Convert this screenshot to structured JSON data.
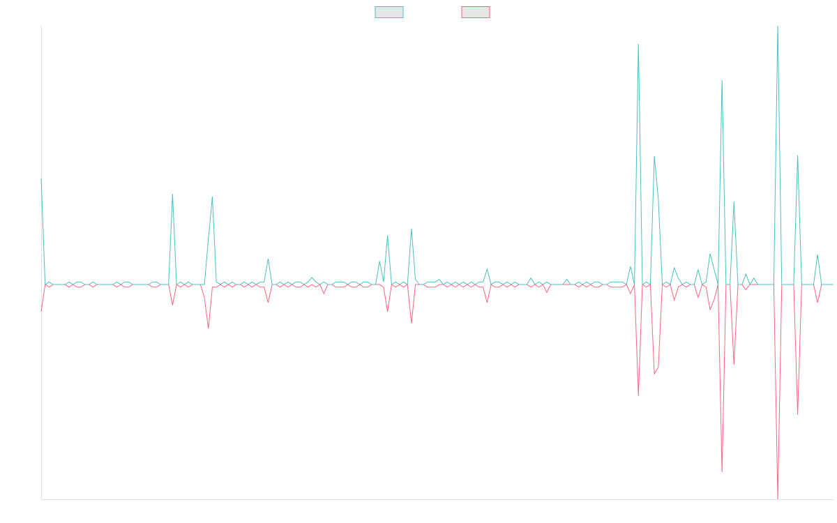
{
  "chart_data": {
    "type": "line",
    "legend": "top",
    "ylim": [
      -83,
      100
    ],
    "series": [
      {
        "color": "#4bc0c0",
        "values": [
          41,
          0,
          1,
          0,
          0,
          0,
          0,
          1,
          0,
          1,
          1,
          0,
          0,
          1,
          0,
          0,
          0,
          0,
          0,
          1,
          0,
          1,
          1,
          0,
          0,
          0,
          0,
          0,
          1,
          1,
          0,
          0,
          0,
          35,
          0,
          1,
          0,
          1,
          0,
          0,
          0,
          0,
          17.5,
          34,
          1,
          0,
          1,
          0,
          1,
          0,
          0,
          1,
          0,
          1,
          0,
          1,
          1,
          10,
          0,
          0,
          1,
          0,
          1,
          0,
          1,
          1,
          0,
          1,
          2.7,
          1,
          0,
          1,
          0,
          0,
          1,
          1,
          1,
          0,
          1,
          1,
          0,
          1,
          1,
          0,
          0,
          9,
          1,
          19,
          0,
          1,
          0,
          1,
          0,
          21.5,
          2,
          0,
          0,
          1,
          1,
          1,
          2,
          0,
          1,
          0,
          1,
          0,
          1,
          0,
          1,
          0,
          1,
          1,
          6,
          0,
          1,
          1,
          0,
          1,
          0,
          1,
          0,
          0,
          0,
          2.5,
          0,
          1,
          0,
          1,
          0,
          0,
          0,
          0,
          2,
          0,
          0,
          1,
          0,
          1,
          0,
          1,
          1,
          0,
          0,
          1,
          1,
          1,
          1,
          0,
          7,
          0,
          93,
          0,
          1,
          0,
          49.6,
          33,
          0,
          1,
          0,
          6.5,
          2.5,
          0,
          1,
          0,
          0,
          5.7,
          0,
          1,
          12,
          6,
          0,
          79,
          0,
          0,
          32,
          0,
          0,
          4,
          0,
          2.5,
          0,
          0,
          0,
          0,
          0,
          100,
          0,
          0,
          0,
          0,
          50,
          0,
          0,
          0,
          0,
          11.6,
          0,
          0,
          0,
          0
        ]
      },
      {
        "color": "#ff6384",
        "values": [
          -10.5,
          0,
          -1,
          0,
          0,
          0,
          0,
          -1,
          0,
          -1,
          -1,
          0,
          0,
          -1,
          0,
          0,
          0,
          0,
          0,
          -1,
          0,
          -1,
          -1,
          0,
          0,
          0,
          0,
          0,
          -1,
          -1,
          0,
          0,
          0,
          -8,
          0,
          -1,
          0,
          -1,
          0,
          0,
          0,
          -5,
          -17,
          -1,
          -1,
          0,
          -1,
          0,
          -1,
          0,
          0,
          -1,
          0,
          -1,
          0,
          -1,
          -1,
          -7,
          0,
          0,
          -1,
          0,
          -1,
          0,
          -1,
          -1,
          0,
          -1,
          0,
          -1,
          0,
          -3.5,
          0,
          0,
          -1,
          -1,
          -1,
          0,
          -1,
          -1,
          0,
          -1,
          -1,
          0,
          0,
          0,
          -1,
          -10.5,
          0,
          -1,
          0,
          -1,
          0,
          -15,
          0,
          0,
          0,
          -1,
          -1,
          -1,
          0,
          0,
          -1,
          0,
          -1,
          0,
          -1,
          0,
          -1,
          0,
          -1,
          -1,
          -7,
          0,
          -1,
          -1,
          0,
          -1,
          0,
          -1,
          0,
          0,
          0,
          -1,
          0,
          -1,
          0,
          -3,
          0,
          0,
          0,
          0,
          0,
          0,
          0,
          -1,
          0,
          -1,
          0,
          -1,
          -1,
          0,
          0,
          -1,
          -1,
          -1,
          -1,
          0,
          -3.5,
          0,
          -43,
          0,
          -1,
          0,
          -34.5,
          -32,
          0,
          -1,
          0,
          -6,
          -1,
          0,
          -1,
          0,
          0,
          -5,
          0,
          -1,
          -9.7,
          -6,
          0,
          -72.5,
          0,
          0,
          -31,
          0,
          0,
          -2,
          0,
          0,
          0,
          0,
          0,
          0,
          0,
          -83,
          0,
          0,
          0,
          0,
          -50.4,
          0,
          0,
          0,
          0,
          -7,
          0,
          0,
          0,
          0
        ]
      }
    ]
  }
}
